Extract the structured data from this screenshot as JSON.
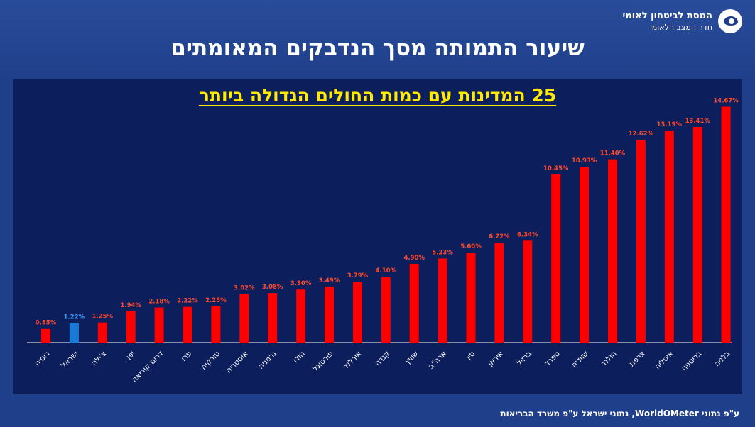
{
  "header": {
    "org_name": "המסת לביטחון לאומי",
    "org_unit": "חדר המצב הלאומי",
    "title": "שיעור התמותה מסך הנדבקים המאומתים"
  },
  "footer": {
    "source": "ע\"פ נתוני WorldOMeter, נתוני ישראל ע\"פ משרד הבריאות"
  },
  "colors": {
    "bar": "#ff0000",
    "highlight_bar": "#1a7bd6",
    "value_label": "#ff4a2a",
    "highlight_label": "#3a9cff",
    "axis": "#ffffff"
  },
  "chart_data": {
    "type": "bar",
    "title": "25 המדינות עם כמות החולים הגדולה ביותר",
    "categories": [
      "רוסיה",
      "ישראל",
      "צ'ילה",
      "יפן",
      "דרום קוריאה",
      "פרו",
      "טורקיה",
      "אוסטריה",
      "גרמניה",
      "הודו",
      "פורטוגל",
      "אירלנד",
      "קנדה",
      "שוויץ",
      "ארה\"ב",
      "סין",
      "איראן",
      "ברזיל",
      "ספרד",
      "שוודיה",
      "הולנד",
      "צרפת",
      "איטליה",
      "בריטניה",
      "בלגיה"
    ],
    "values": [
      0.85,
      1.22,
      1.25,
      1.94,
      2.18,
      2.22,
      2.25,
      3.02,
      3.08,
      3.3,
      3.49,
      3.79,
      4.1,
      4.9,
      5.23,
      5.6,
      6.22,
      6.34,
      10.45,
      10.93,
      11.4,
      12.62,
      13.19,
      13.41,
      14.67
    ],
    "value_labels": [
      "0.85%",
      "1.22%",
      "1.25%",
      "1.94%",
      "2.18%",
      "2.22%",
      "2.25%",
      "3.02%",
      "3.08%",
      "3.30%",
      "3.49%",
      "3.79%",
      "4.10%",
      "4.90%",
      "5.23%",
      "5.60%",
      "6.22%",
      "6.34%",
      "10.45%",
      "10.93%",
      "11.40%",
      "12.62%",
      "13.19%",
      "13.41%",
      "14.67%"
    ],
    "highlight_category": "ישראל",
    "ylim": [
      0,
      15
    ],
    "grid": false,
    "legend": "none"
  }
}
